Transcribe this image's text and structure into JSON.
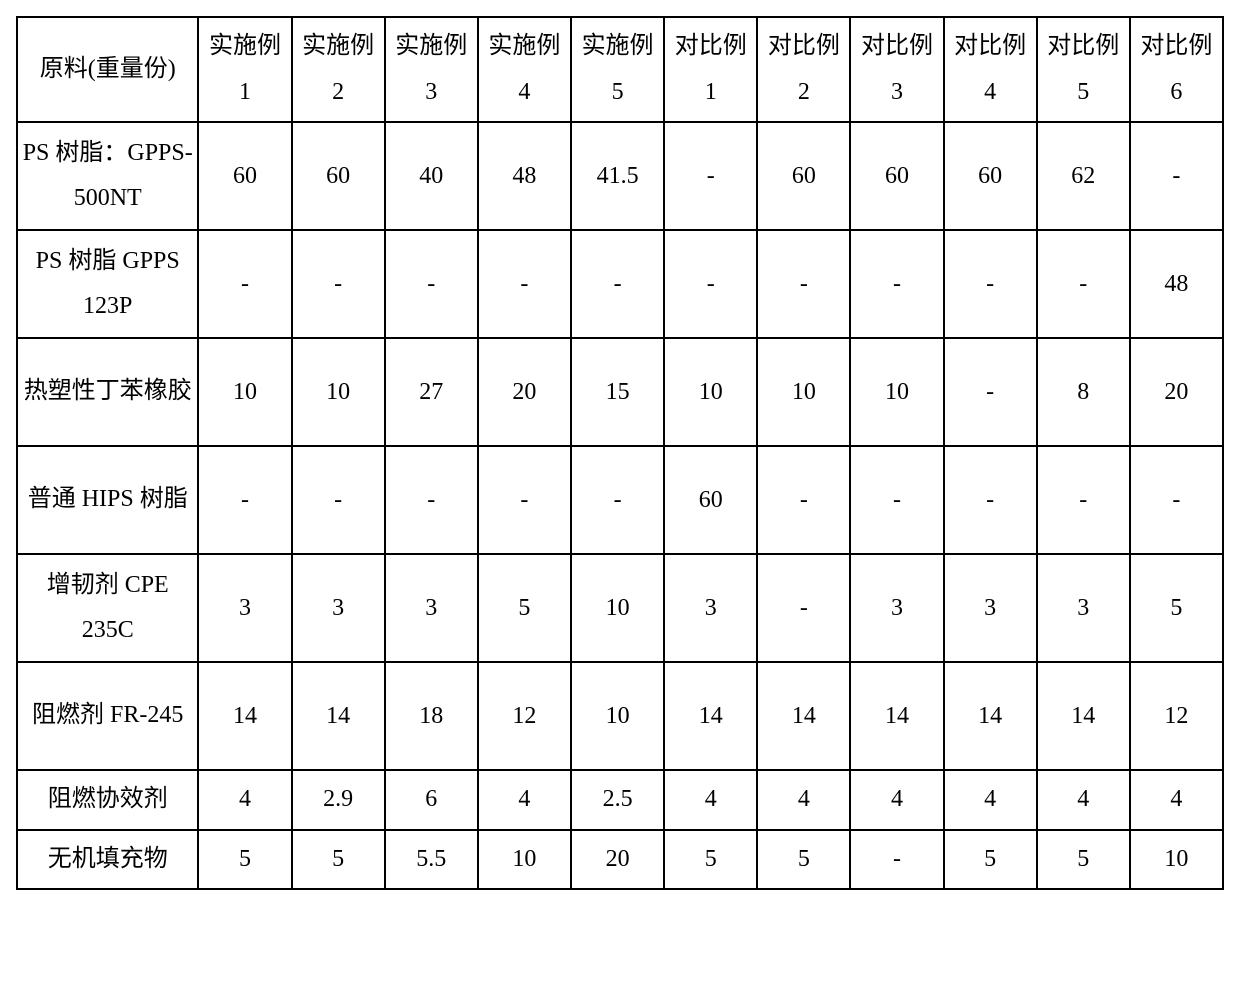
{
  "table": {
    "font_size_pt": 18,
    "border_color": "#000000",
    "background_color": "#ffffff",
    "text_color": "#000000",
    "header_row_label": "原料(重量份)",
    "columns": [
      "实施例 1",
      "实施例 2",
      "实施例 3",
      "实施例 4",
      "实施例 5",
      "对比例 1",
      "对比例 2",
      "对比例 3",
      "对比例 4",
      "对比例 5",
      "对比例 6"
    ],
    "rows": [
      {
        "label": "PS 树脂：GPPS-500NT",
        "cells": [
          "60",
          "60",
          "40",
          "48",
          "41.5",
          "-",
          "60",
          "60",
          "60",
          "62",
          "-"
        ]
      },
      {
        "label": "PS 树脂 GPPS 123P",
        "cells": [
          "-",
          "-",
          "-",
          "-",
          "-",
          "-",
          "-",
          "-",
          "-",
          "-",
          "48"
        ]
      },
      {
        "label": "热塑性丁苯橡胶",
        "cells": [
          "10",
          "10",
          "27",
          "20",
          "15",
          "10",
          "10",
          "10",
          "-",
          "8",
          "20"
        ]
      },
      {
        "label": "普通 HIPS 树脂",
        "cells": [
          "-",
          "-",
          "-",
          "-",
          "-",
          "60",
          "-",
          "-",
          "-",
          "-",
          "-"
        ]
      },
      {
        "label": "增韧剂 CPE 235C",
        "cells": [
          "3",
          "3",
          "3",
          "5",
          "10",
          "3",
          "-",
          "3",
          "3",
          "3",
          "5"
        ]
      },
      {
        "label": "阻燃剂 FR-245",
        "cells": [
          "14",
          "14",
          "18",
          "12",
          "10",
          "14",
          "14",
          "14",
          "14",
          "14",
          "12"
        ]
      },
      {
        "label": "阻燃协效剂",
        "cells": [
          "4",
          "2.9",
          "6",
          "4",
          "2.5",
          "4",
          "4",
          "4",
          "4",
          "4",
          "4"
        ]
      },
      {
        "label": "无机填充物",
        "cells": [
          "5",
          "5",
          "5.5",
          "10",
          "20",
          "5",
          "5",
          "-",
          "5",
          "5",
          "10"
        ]
      }
    ],
    "tall_row_indices": [
      0,
      1,
      2,
      3,
      4,
      5
    ],
    "short_row_indices": [
      6,
      7
    ]
  }
}
